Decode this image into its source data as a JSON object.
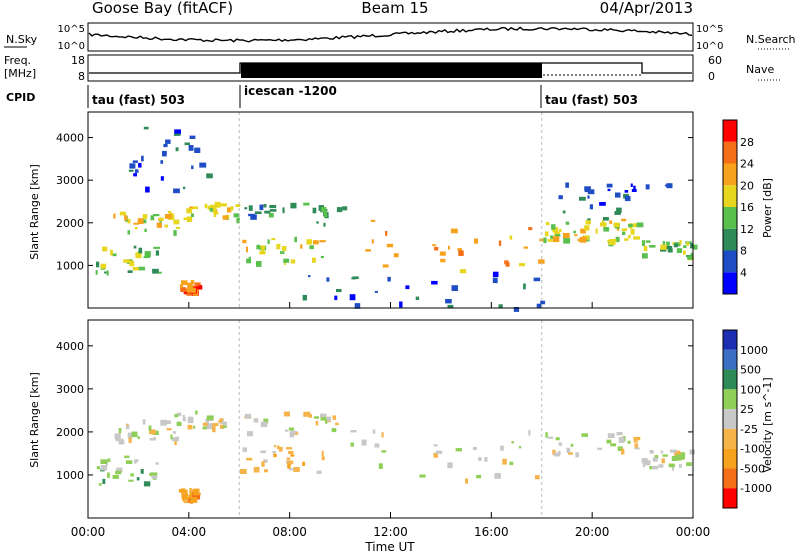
{
  "header": {
    "station": "Goose Bay (fitACF)",
    "beam": "Beam 15",
    "date": "04/Apr/2013"
  },
  "strip_labels": {
    "nsky": "N.Sky",
    "nsearch": "N.Search",
    "freq_line1": "Freq.",
    "freq_line2": "[MHz]",
    "nave": "Nave",
    "cpid": "CPID"
  },
  "noise_ticks": {
    "top": "10^5",
    "bottom": "10^0"
  },
  "freq_ticks": {
    "top": "18",
    "bottom": "8"
  },
  "nave_ticks": {
    "top": "60",
    "bottom": "0"
  },
  "cpid_segments": [
    {
      "label": "tau (fast) 503",
      "start_h": 0.0,
      "end_h": 6.0
    },
    {
      "label": "icescan -1200",
      "start_h": 6.0,
      "end_h": 18.0
    },
    {
      "label": "tau (fast) 503",
      "start_h": 18.0,
      "end_h": 24.0
    }
  ],
  "x_ticks": [
    "00:00",
    "04:00",
    "08:00",
    "12:00",
    "16:00",
    "20:00",
    "00:00"
  ],
  "y_ticks": [
    "1000",
    "2000",
    "3000",
    "4000"
  ],
  "power_colorbar": {
    "labels": [
      "4",
      "8",
      "12",
      "16",
      "20",
      "24",
      "28"
    ],
    "title": "Power [dB]",
    "colors": [
      "#0000ff",
      "#1f4ec4",
      "#2e8b57",
      "#59c04d",
      "#e6d61e",
      "#f7a21c",
      "#f46f17",
      "#ff0000"
    ]
  },
  "velocity_colorbar": {
    "labels": [
      "1000",
      "500",
      "100",
      "25",
      "-25",
      "-100",
      "-500",
      "-1000"
    ],
    "title": "Velocity [m s^-1]",
    "colors": [
      "#1c2fb2",
      "#3b6fc4",
      "#2e8b57",
      "#8fce57",
      "#c8c8c8",
      "#f5b34a",
      "#f7a21c",
      "#f46f17",
      "#ff0000"
    ]
  },
  "chart_data": [
    {
      "type": "heatmap",
      "title": "Power",
      "ylabel": "Slant Range [km]",
      "xlabel": "Time UT",
      "xlim": [
        0,
        24
      ],
      "ylim": [
        0,
        4600
      ],
      "colorbar_label": "Power [dB]",
      "regions": [
        {
          "t0": 0.3,
          "t1": 2.8,
          "r0": 800,
          "r1": 1500,
          "level": 3
        },
        {
          "t0": 1.0,
          "t1": 3.5,
          "r0": 1800,
          "r1": 2300,
          "level": 4
        },
        {
          "t0": 3.4,
          "t1": 5.9,
          "r0": 2100,
          "r1": 2500,
          "level": 4
        },
        {
          "t0": 3.6,
          "t1": 4.3,
          "r0": 400,
          "r1": 700,
          "level": 6
        },
        {
          "t0": 1.6,
          "t1": 4.9,
          "r0": 2800,
          "r1": 4300,
          "level": 1
        },
        {
          "t0": 6.0,
          "t1": 9.3,
          "r0": 1100,
          "r1": 1700,
          "level": 4
        },
        {
          "t0": 6.2,
          "t1": 10.5,
          "r0": 2000,
          "r1": 2500,
          "level": 2
        },
        {
          "t0": 10.0,
          "t1": 18.0,
          "r0": 900,
          "r1": 2100,
          "level": 5
        },
        {
          "t0": 8.5,
          "t1": 18.0,
          "r0": 0,
          "r1": 900,
          "level": 1
        },
        {
          "t0": 18.0,
          "t1": 20.0,
          "r0": 1600,
          "r1": 2100,
          "level": 4
        },
        {
          "t0": 20.0,
          "t1": 21.8,
          "r0": 1500,
          "r1": 2100,
          "level": 4
        },
        {
          "t0": 21.8,
          "t1": 24.0,
          "r0": 1200,
          "r1": 1600,
          "level": 3
        },
        {
          "t0": 18.5,
          "t1": 23.0,
          "r0": 2100,
          "r1": 3000,
          "level": 1
        }
      ]
    },
    {
      "type": "heatmap",
      "title": "Velocity",
      "ylabel": "Slant Range [km]",
      "xlabel": "Time UT",
      "xlim": [
        0,
        24
      ],
      "ylim": [
        0,
        4600
      ],
      "colorbar_label": "Velocity [m s-1]",
      "regions": [
        {
          "t0": 0.3,
          "t1": 2.8,
          "r0": 800,
          "r1": 1500,
          "level": 3
        },
        {
          "t0": 1.0,
          "t1": 3.5,
          "r0": 1800,
          "r1": 2300,
          "level": 4
        },
        {
          "t0": 3.4,
          "t1": 5.9,
          "r0": 2100,
          "r1": 2500,
          "level": 4
        },
        {
          "t0": 3.6,
          "t1": 4.3,
          "r0": 400,
          "r1": 700,
          "level": 6
        },
        {
          "t0": 6.0,
          "t1": 9.3,
          "r0": 1100,
          "r1": 1700,
          "level": 5
        },
        {
          "t0": 6.2,
          "t1": 10.5,
          "r0": 2000,
          "r1": 2500,
          "level": 4
        },
        {
          "t0": 10.0,
          "t1": 18.0,
          "r0": 900,
          "r1": 2100,
          "level": 4
        },
        {
          "t0": 18.0,
          "t1": 21.8,
          "r0": 1500,
          "r1": 2100,
          "level": 4
        },
        {
          "t0": 21.8,
          "t1": 24.0,
          "r0": 1200,
          "r1": 1600,
          "level": 4
        }
      ]
    }
  ]
}
